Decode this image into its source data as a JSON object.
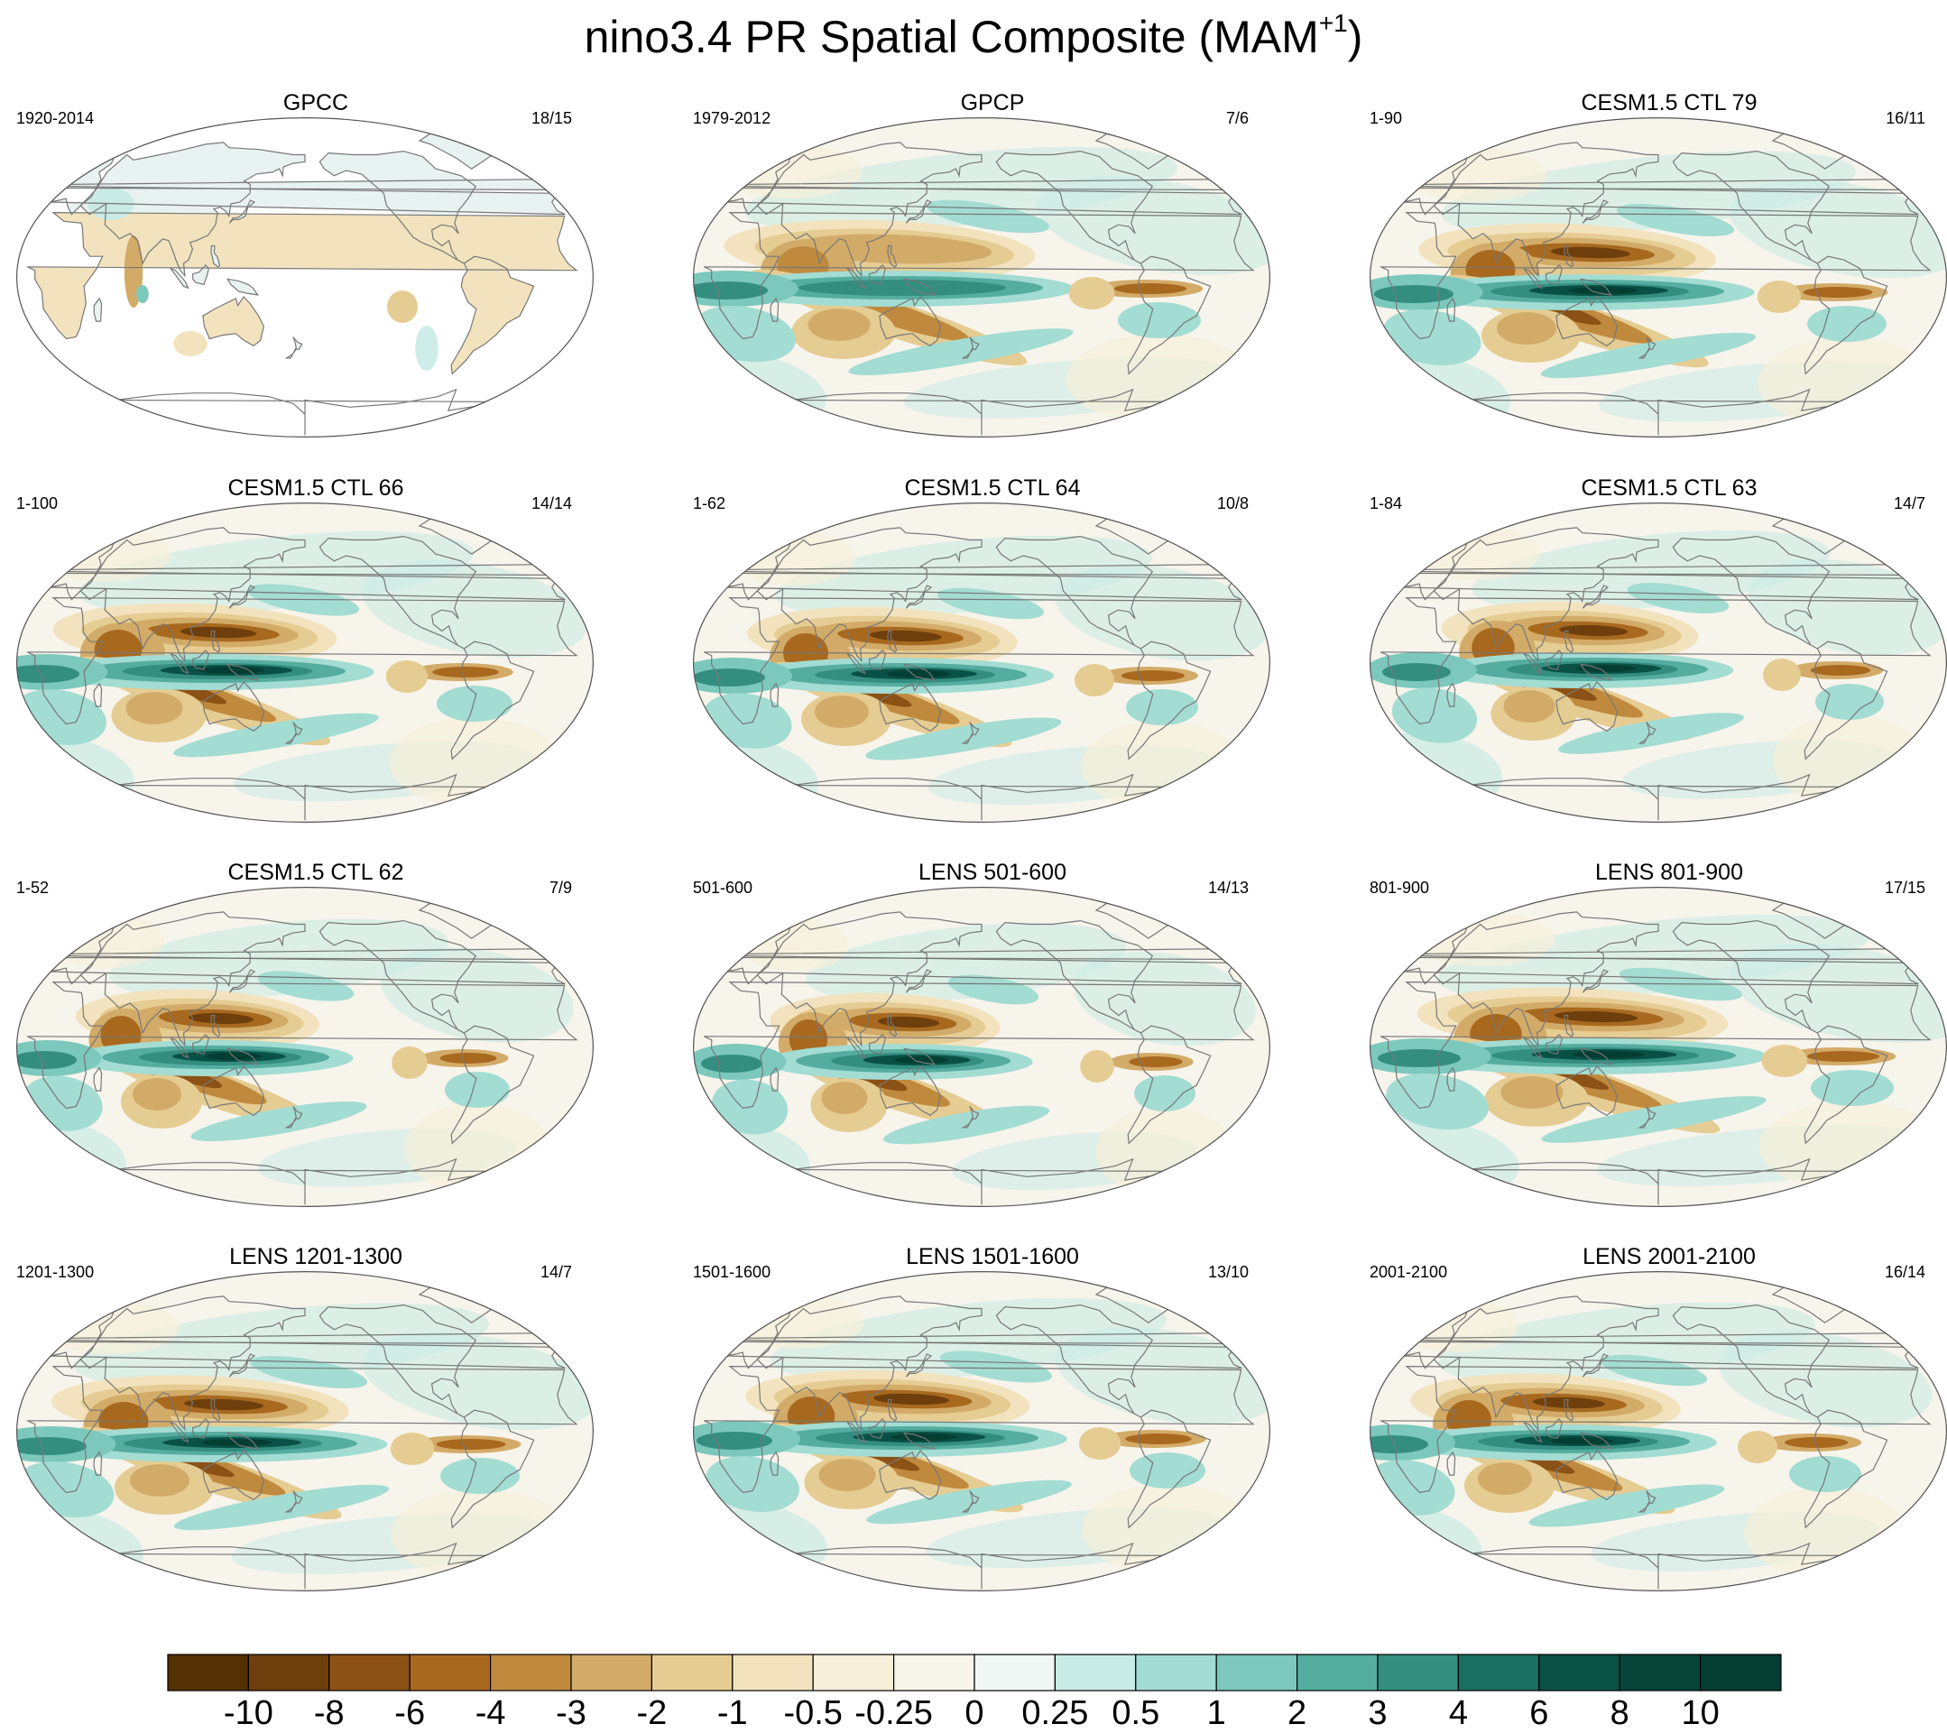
{
  "figure": {
    "title_main": "nino3.4 PR Spatial Composite (MAM",
    "title_sup": "+1",
    "title_end": ")"
  },
  "panels": [
    {
      "title": "GPCC",
      "period": "1920-2014",
      "counts": "18/15",
      "pattern": "observed_land_only"
    },
    {
      "title": "GPCP",
      "period": "1979-2012",
      "counts": "7/6",
      "pattern": "observed_global"
    },
    {
      "title": "CESM1.5 CTL 79",
      "period": "1-90",
      "counts": "16/11",
      "pattern": "model"
    },
    {
      "title": "CESM1.5 CTL 66",
      "period": "1-100",
      "counts": "14/14",
      "pattern": "model"
    },
    {
      "title": "CESM1.5 CTL 64",
      "period": "1-62",
      "counts": "10/8",
      "pattern": "model"
    },
    {
      "title": "CESM1.5 CTL 63",
      "period": "1-84",
      "counts": "14/7",
      "pattern": "model"
    },
    {
      "title": "CESM1.5 CTL 62",
      "period": "1-52",
      "counts": "7/9",
      "pattern": "model"
    },
    {
      "title": "LENS 501-600",
      "period": "501-600",
      "counts": "14/13",
      "pattern": "model"
    },
    {
      "title": "LENS 801-900",
      "period": "801-900",
      "counts": "17/15",
      "pattern": "model"
    },
    {
      "title": "LENS 1201-1300",
      "period": "1201-1300",
      "counts": "14/7",
      "pattern": "model"
    },
    {
      "title": "LENS 1501-1600",
      "period": "1501-1600",
      "counts": "13/10",
      "pattern": "model"
    },
    {
      "title": "LENS 2001-2100",
      "period": "2001-2100",
      "counts": "16/14",
      "pattern": "model"
    }
  ],
  "colorbar": {
    "labels": [
      "-10",
      "-8",
      "-6",
      "-4",
      "-3",
      "-2",
      "-1",
      "-0.5",
      "-0.25",
      "0",
      "0.25",
      "0.5",
      "1",
      "2",
      "3",
      "4",
      "6",
      "8",
      "10"
    ],
    "colors": [
      "#543005",
      "#6e3f0c",
      "#8c5114",
      "#a8691f",
      "#c08a3e",
      "#d3ab68",
      "#e5cc92",
      "#f2e3be",
      "#f7efda",
      "#f7f4ec",
      "#e8f3f1",
      "#c9ebe5",
      "#a3dcd2",
      "#7cc8bd",
      "#55ad9f",
      "#338e80",
      "#1a6f61",
      "#0a5145",
      "#043d32"
    ]
  }
}
